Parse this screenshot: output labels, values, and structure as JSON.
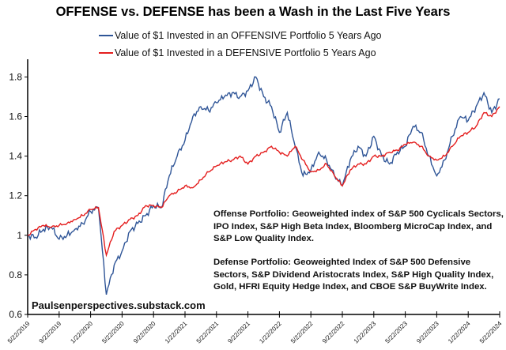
{
  "chart_data": {
    "type": "line",
    "title": "OFFENSE vs. DEFENSE has been a Wash in the Last Five Years",
    "xlabel": "",
    "ylabel": "",
    "ylim": [
      0.6,
      1.9
    ],
    "yticks": [
      "0.6",
      "0.8",
      "1",
      "1.2",
      "1.4",
      "1.6",
      "1.8"
    ],
    "xtick_labels": [
      "5/22/2019",
      "9/22/2019",
      "1/22/2020",
      "5/22/2020",
      "9/22/2020",
      "1/22/2021",
      "5/22/2021",
      "9/22/2021",
      "1/22/2022",
      "5/22/2022",
      "9/22/2022",
      "1/22/2023",
      "5/22/2023",
      "9/22/2023",
      "1/22/2024",
      "5/22/2024"
    ],
    "grid": false,
    "legend_position": "top",
    "x": [
      "2019-05",
      "2019-06",
      "2019-07",
      "2019-08",
      "2019-09",
      "2019-10",
      "2019-11",
      "2019-12",
      "2020-01",
      "2020-02",
      "2020-03",
      "2020-04",
      "2020-05",
      "2020-06",
      "2020-07",
      "2020-08",
      "2020-09",
      "2020-10",
      "2020-11",
      "2020-12",
      "2021-01",
      "2021-02",
      "2021-03",
      "2021-04",
      "2021-05",
      "2021-06",
      "2021-07",
      "2021-08",
      "2021-09",
      "2021-10",
      "2021-11",
      "2021-12",
      "2022-01",
      "2022-02",
      "2022-03",
      "2022-04",
      "2022-05",
      "2022-06",
      "2022-07",
      "2022-08",
      "2022-09",
      "2022-10",
      "2022-11",
      "2022-12",
      "2023-01",
      "2023-02",
      "2023-03",
      "2023-04",
      "2023-05",
      "2023-06",
      "2023-07",
      "2023-08",
      "2023-09",
      "2023-10",
      "2023-11",
      "2023-12",
      "2024-01",
      "2024-02",
      "2024-03",
      "2024-04",
      "2024-05"
    ],
    "series": [
      {
        "name": "Value of $1 Invested in an OFFENSIVE Portfolio 5 Years Ago",
        "color": "#2f5597",
        "values": [
          1.0,
          0.99,
          1.03,
          1.04,
          0.98,
          1.0,
          1.03,
          1.06,
          1.12,
          1.14,
          0.7,
          0.85,
          0.92,
          1.02,
          1.06,
          1.1,
          1.15,
          1.14,
          1.3,
          1.4,
          1.48,
          1.6,
          1.65,
          1.63,
          1.67,
          1.7,
          1.72,
          1.7,
          1.73,
          1.8,
          1.7,
          1.65,
          1.52,
          1.62,
          1.45,
          1.3,
          1.33,
          1.42,
          1.38,
          1.3,
          1.25,
          1.38,
          1.45,
          1.4,
          1.5,
          1.4,
          1.36,
          1.42,
          1.45,
          1.55,
          1.52,
          1.4,
          1.3,
          1.38,
          1.5,
          1.6,
          1.58,
          1.65,
          1.72,
          1.62,
          1.69
        ]
      },
      {
        "name": "Value of $1 Invested in a DEFENSIVE Portfolio 5 Years Ago",
        "color": "#e41e1e",
        "values": [
          1.0,
          1.03,
          1.05,
          1.04,
          1.05,
          1.06,
          1.08,
          1.1,
          1.13,
          1.14,
          0.9,
          1.02,
          1.05,
          1.08,
          1.1,
          1.15,
          1.15,
          1.14,
          1.2,
          1.22,
          1.25,
          1.24,
          1.28,
          1.32,
          1.35,
          1.37,
          1.38,
          1.4,
          1.36,
          1.4,
          1.42,
          1.45,
          1.42,
          1.4,
          1.45,
          1.38,
          1.32,
          1.33,
          1.36,
          1.3,
          1.25,
          1.33,
          1.36,
          1.36,
          1.4,
          1.4,
          1.42,
          1.43,
          1.46,
          1.47,
          1.45,
          1.4,
          1.38,
          1.4,
          1.45,
          1.5,
          1.52,
          1.55,
          1.62,
          1.6,
          1.65
        ]
      }
    ],
    "annotations": {
      "offense": "Offense Portfolio:  Geoweighted index of S&P 500 Cyclicals Sectors, IPO Index, S&P High Beta Index, Bloomberg MicroCap Index, and S&P  Low Quality Index.",
      "defense": "Defense Portfolio:  Geoweighted Index of S&P 500 Defensive Sectors, S&P Dividend Aristocrats Index, S&P High Quality Index, Gold, HFRI Equity Hedge Index, and CBOE S&P BuyWrite Index.",
      "source": "Paulsenperspectives.substack.com"
    }
  }
}
